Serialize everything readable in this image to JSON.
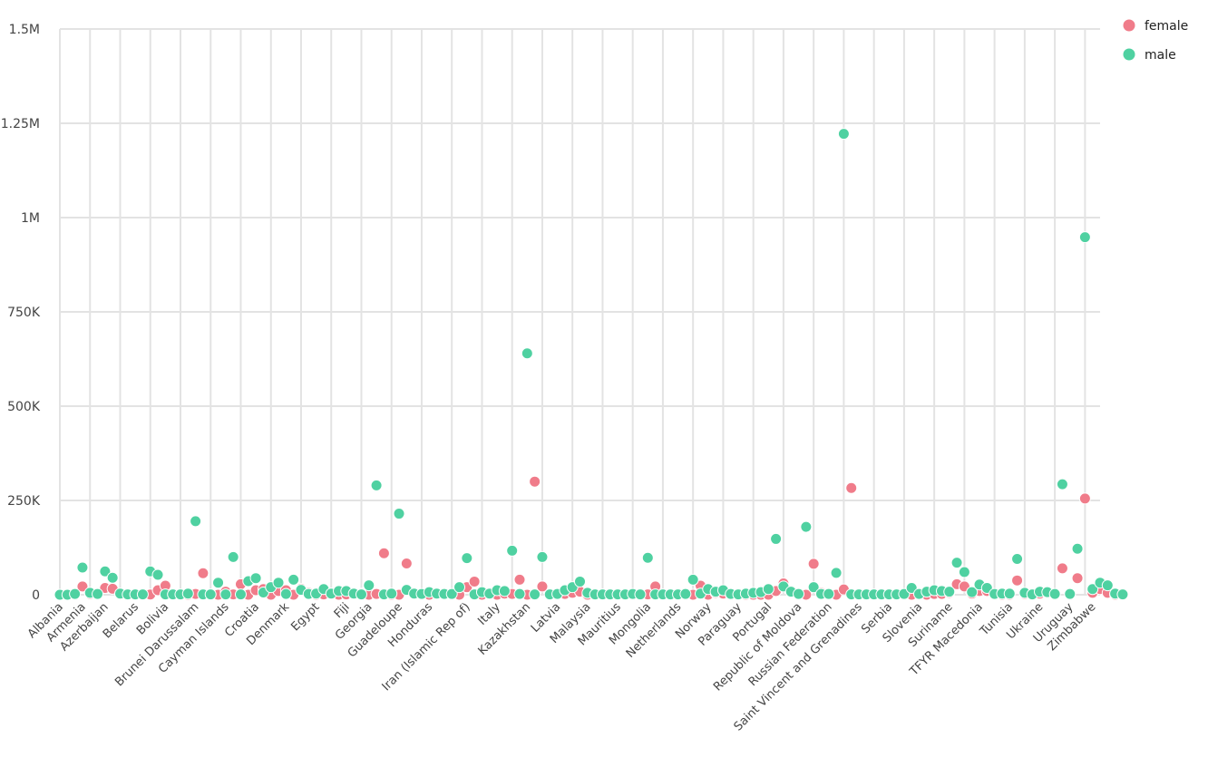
{
  "chart_data": {
    "type": "scatter",
    "title": "",
    "xlabel": "",
    "ylabel": "",
    "ylim": [
      0,
      1500000
    ],
    "yticks": [
      {
        "value": 0,
        "label": "0"
      },
      {
        "value": 250000,
        "label": "250K"
      },
      {
        "value": 500000,
        "label": "500K"
      },
      {
        "value": 750000,
        "label": "750K"
      },
      {
        "value": 1000000,
        "label": "1M"
      },
      {
        "value": 1250000,
        "label": "1.25M"
      },
      {
        "value": 1500000,
        "label": "1.5M"
      }
    ],
    "grid": true,
    "legend_position": "top-right",
    "x_tick_labels": [
      {
        "index": 0,
        "label": "Albania"
      },
      {
        "index": 3,
        "label": "Armenia"
      },
      {
        "index": 6,
        "label": "Azerbaijan"
      },
      {
        "index": 10,
        "label": "Belarus"
      },
      {
        "index": 14,
        "label": "Bolivia"
      },
      {
        "index": 18,
        "label": "Brunei Darussalam"
      },
      {
        "index": 22,
        "label": "Cayman Islands"
      },
      {
        "index": 26,
        "label": "Croatia"
      },
      {
        "index": 30,
        "label": "Denmark"
      },
      {
        "index": 34,
        "label": "Egypt"
      },
      {
        "index": 38,
        "label": "Fiji"
      },
      {
        "index": 41,
        "label": "Georgia"
      },
      {
        "index": 45,
        "label": "Guadeloupe"
      },
      {
        "index": 49,
        "label": "Honduras"
      },
      {
        "index": 54,
        "label": "Iran (Islamic Rep of)"
      },
      {
        "index": 58,
        "label": "Italy"
      },
      {
        "index": 62,
        "label": "Kazakhstan"
      },
      {
        "index": 66,
        "label": "Latvia"
      },
      {
        "index": 70,
        "label": "Malaysia"
      },
      {
        "index": 74,
        "label": "Mauritius"
      },
      {
        "index": 78,
        "label": "Mongolia"
      },
      {
        "index": 82,
        "label": "Netherlands"
      },
      {
        "index": 86,
        "label": "Norway"
      },
      {
        "index": 90,
        "label": "Paraguay"
      },
      {
        "index": 94,
        "label": "Portugal"
      },
      {
        "index": 98,
        "label": "Republic of Moldova"
      },
      {
        "index": 102,
        "label": "Russian Federation"
      },
      {
        "index": 106,
        "label": "Saint Vincent and Grenadines"
      },
      {
        "index": 110,
        "label": "Serbia"
      },
      {
        "index": 114,
        "label": "Slovenia"
      },
      {
        "index": 118,
        "label": "Suriname"
      },
      {
        "index": 122,
        "label": "TFYR Macedonia"
      },
      {
        "index": 126,
        "label": "Tunisia"
      },
      {
        "index": 130,
        "label": "Ukraine"
      },
      {
        "index": 134,
        "label": "Uruguay"
      },
      {
        "index": 137,
        "label": "Zimbabwe"
      }
    ],
    "x_count": 139,
    "series": [
      {
        "name": "female",
        "color": "#f07c8a",
        "values": [
          0,
          0,
          0,
          22000,
          2000,
          1000,
          18000,
          16000,
          1000,
          0,
          0,
          0,
          500,
          12000,
          24000,
          0,
          0,
          0,
          2000,
          57000,
          0,
          0,
          8000,
          1000,
          28000,
          0,
          12000,
          15000,
          0,
          10000,
          12000,
          0,
          16000,
          5000,
          0,
          1000,
          3000,
          0,
          1000,
          2000,
          3000,
          0,
          2000,
          110000,
          0,
          0,
          83000,
          2000,
          0,
          0,
          3000,
          1000,
          0,
          0,
          20000,
          35000,
          0,
          3000,
          0,
          3000,
          2000,
          40000,
          0,
          300000,
          22000,
          0,
          0,
          2000,
          5000,
          8000,
          0,
          0,
          0,
          0,
          0,
          0,
          0,
          0,
          1000,
          22000,
          0,
          0,
          0,
          0,
          0,
          24000,
          0,
          5000,
          3000,
          0,
          2000,
          0,
          0,
          0,
          0,
          10000,
          30000,
          10000,
          0,
          0,
          82000,
          5000,
          0,
          0,
          14000,
          283000,
          0,
          0,
          0,
          0,
          0,
          0,
          0,
          0,
          3000,
          0,
          2000,
          2000,
          5000,
          28000,
          22000,
          3000,
          10000,
          10000,
          0,
          0,
          0,
          38000,
          2000,
          0,
          3000,
          5000,
          0,
          70000,
          0,
          44000,
          255000,
          5000,
          15000,
          5000,
          0,
          0
        ]
      },
      {
        "name": "male",
        "color": "#4fd1a1",
        "values": [
          0,
          0,
          2000,
          72000,
          5000,
          2000,
          62000,
          45000,
          3000,
          1000,
          1000,
          1000,
          62000,
          53000,
          1000,
          1000,
          1000,
          3000,
          195000,
          1000,
          1000,
          32000,
          1000,
          100000,
          1000,
          36000,
          44000,
          6000,
          20000,
          32000,
          2000,
          40000,
          13000,
          2000,
          3000,
          15000,
          3000,
          10000,
          10000,
          3000,
          1000,
          25000,
          290000,
          1000,
          3000,
          215000,
          13000,
          3000,
          2000,
          7000,
          3000,
          2000,
          2000,
          20000,
          97000,
          1000,
          7000,
          3000,
          12000,
          10000,
          117000,
          2000,
          640000,
          1000,
          100000,
          1000,
          2000,
          12000,
          20000,
          35000,
          5000,
          1000,
          1000,
          1000,
          1000,
          1000,
          2000,
          1000,
          98000,
          1000,
          1000,
          1000,
          1000,
          2000,
          40000,
          3000,
          15000,
          8000,
          12000,
          2000,
          1000,
          3000,
          5000,
          7000,
          15000,
          148000,
          22000,
          8000,
          2000,
          180000,
          20000,
          2000,
          2000,
          58000,
          1222000,
          1000,
          1000,
          1000,
          1000,
          1000,
          1000,
          1000,
          2000,
          18000,
          2000,
          8000,
          12000,
          10000,
          8000,
          85000,
          60000,
          7000,
          27000,
          18000,
          2000,
          3000,
          3000,
          95000,
          5000,
          1000,
          8000,
          7000,
          2000,
          293000,
          2000,
          122000,
          948000,
          15000,
          32000,
          25000,
          3000,
          1000
        ]
      }
    ]
  }
}
